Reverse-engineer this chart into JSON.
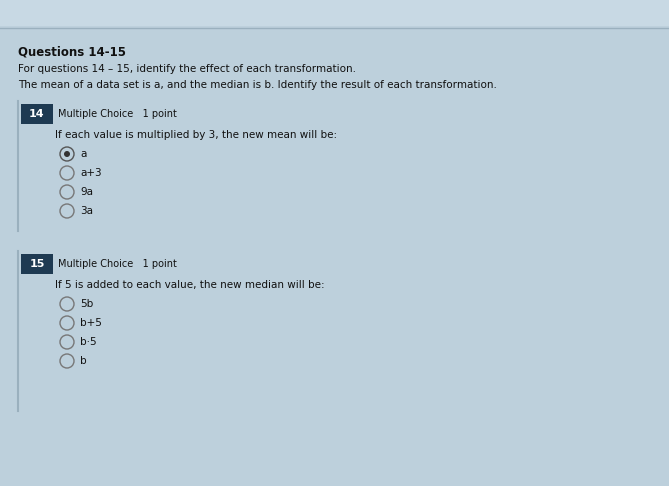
{
  "background_color": "#bdd0dc",
  "top_bar_color": "#cddce6",
  "title": "Questions 14-15",
  "subtitle1": "For questions 14 – 15, identify the effect of each transformation.",
  "subtitle2": "The mean of a data set is a, and the median is b. Identify the result of each transformation.",
  "q14_num": "14",
  "q14_type": "Multiple Choice   1 point",
  "q14_question": "If each value is multiplied by 3, the new mean will be:",
  "q14_options": [
    "a",
    "a+3",
    "9a",
    "3a"
  ],
  "q14_selected": 0,
  "q15_num": "15",
  "q15_type": "Multiple Choice   1 point",
  "q15_question": "If 5 is added to each value, the new median will be:",
  "q15_options": [
    "5b",
    "b+5",
    "b·5",
    "b"
  ],
  "q15_selected": -1,
  "box_color": "#1e3a52",
  "text_color": "#111111",
  "title_color": "#000000",
  "font_size_title": 8.5,
  "font_size_sub": 7.5,
  "font_size_q": 7.5,
  "font_size_opt": 7.5,
  "font_size_num": 8.0,
  "font_size_type": 7.0
}
